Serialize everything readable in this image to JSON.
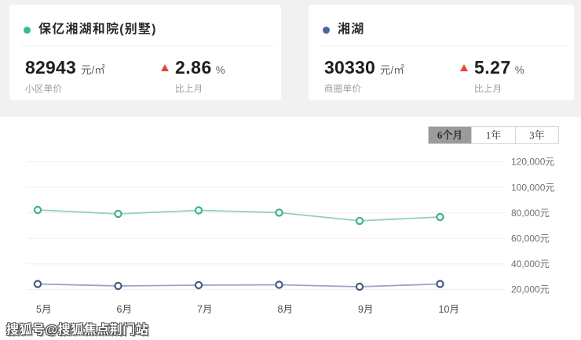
{
  "page": {
    "background_color": "#f1f1f2",
    "panel_color": "#ffffff"
  },
  "cards": [
    {
      "dot_color": "#3dba93",
      "title": "保亿湘湖和院(别墅)",
      "price": "82943",
      "price_unit": "元/㎡",
      "price_caption": "小区单价",
      "change": "2.86",
      "change_unit": "%",
      "change_caption": "比上月",
      "change_direction": "up",
      "change_color": "#dc4837"
    },
    {
      "dot_color": "#4c63a8",
      "title": "湘湖",
      "price": "30330",
      "price_unit": "元/㎡",
      "price_caption": "商圈单价",
      "change": "5.27",
      "change_unit": "%",
      "change_caption": "比上月",
      "change_direction": "up",
      "change_color": "#dc4837"
    }
  ],
  "period_tabs": [
    {
      "label": "6个月",
      "active": true
    },
    {
      "label": "1年",
      "active": false
    },
    {
      "label": "3年",
      "active": false
    }
  ],
  "watermark": "搜狐号@搜狐焦点荆门站",
  "chart_data": {
    "type": "line",
    "categories": [
      "5月",
      "6月",
      "7月",
      "8月",
      "9月",
      "10月"
    ],
    "series": [
      {
        "name": "保亿湘湖和院(别墅)",
        "point_color": "#3fb192",
        "line_color": "#8ed1b6",
        "values": [
          82270,
          79200,
          81960,
          80180,
          73740,
          76750
        ]
      },
      {
        "name": "湘湖",
        "point_color": "#4b5a80",
        "line_color": "#9aa5c4",
        "values": [
          24290,
          22760,
          23370,
          23680,
          22150,
          24290
        ]
      }
    ],
    "y_ticks": [
      {
        "value": 20000,
        "label": "20,000元"
      },
      {
        "value": 40000,
        "label": "40,000元"
      },
      {
        "value": 60000,
        "label": "60,000元"
      },
      {
        "value": 80000,
        "label": "80,000元"
      },
      {
        "value": 100000,
        "label": "100,000元"
      },
      {
        "value": 120000,
        "label": "120,000元"
      }
    ],
    "ylim": [
      10800,
      128900
    ],
    "y_axis_side": "right",
    "grid": true,
    "marker": "hollow-circle",
    "title": "",
    "xlabel": "",
    "ylabel": ""
  }
}
